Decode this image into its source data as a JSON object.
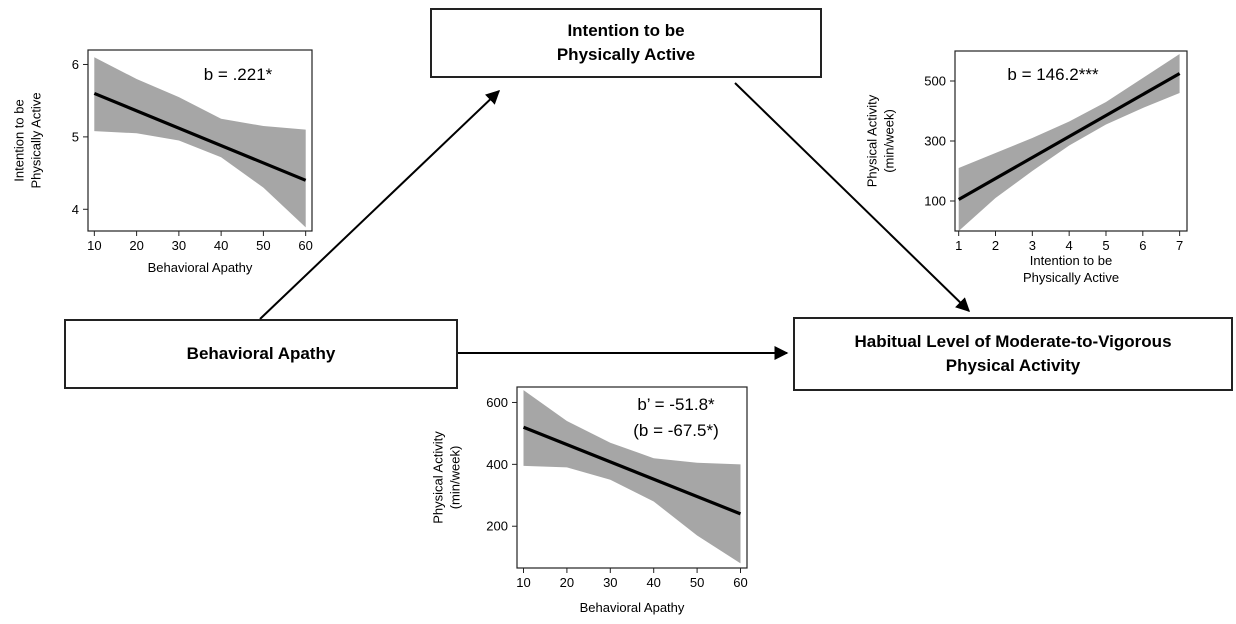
{
  "boxes": {
    "intention": {
      "line1": "Intention to be",
      "line2": "Physically Active"
    },
    "apathy": {
      "label": "Behavioral Apathy"
    },
    "activity": {
      "line1": "Habitual Level of Moderate-to-Vigorous",
      "line2": "Physical Activity"
    }
  },
  "colors": {
    "band": "#a6a6a6",
    "line": "#000000",
    "frame": "#222222"
  },
  "chart_data": [
    {
      "type": "line",
      "id": "a-path",
      "coefficient": "b = .221*",
      "xlabel": "Behavioral Apathy",
      "ylabel": [
        "Intention to be",
        "Physically Active"
      ],
      "xlim": [
        8.5,
        61.5
      ],
      "ylim": [
        3.7,
        6.2
      ],
      "xticks": [
        10,
        20,
        30,
        40,
        50,
        60
      ],
      "yticks": [
        4,
        5,
        6
      ],
      "x": [
        10,
        60
      ],
      "y": [
        5.6,
        4.4
      ],
      "band_x": [
        10,
        20,
        30,
        40,
        50,
        60
      ],
      "band_upper": [
        6.1,
        5.8,
        5.55,
        5.25,
        5.15,
        5.1
      ],
      "band_lower": [
        5.08,
        5.05,
        4.95,
        4.72,
        4.3,
        3.75
      ]
    },
    {
      "type": "line",
      "id": "b-path",
      "coefficient": "b = 146.2***",
      "xlabel": [
        "Intention to be",
        "Physically Active"
      ],
      "ylabel": [
        "Physical Activity",
        "(min/week)"
      ],
      "xlim": [
        0.9,
        7.2
      ],
      "ylim": [
        0,
        600
      ],
      "xticks": [
        1,
        2,
        3,
        4,
        5,
        6,
        7
      ],
      "yticks": [
        100,
        300,
        500
      ],
      "x": [
        1,
        7
      ],
      "y": [
        105,
        525
      ],
      "band_x": [
        1,
        2,
        3,
        4,
        5,
        6,
        7
      ],
      "band_upper": [
        210,
        260,
        310,
        365,
        430,
        510,
        590
      ],
      "band_lower": [
        0,
        110,
        200,
        285,
        355,
        410,
        460
      ]
    },
    {
      "type": "line",
      "id": "c-path",
      "coefficient": [
        "b’ = -51.8*",
        "(b  = -67.5*)"
      ],
      "xlabel": "Behavioral Apathy",
      "ylabel": [
        "Physical Activity",
        "(min/week)"
      ],
      "xlim": [
        8.5,
        61.5
      ],
      "ylim": [
        65,
        650
      ],
      "xticks": [
        10,
        20,
        30,
        40,
        50,
        60
      ],
      "yticks": [
        200,
        400,
        600
      ],
      "x": [
        10,
        60
      ],
      "y": [
        520,
        240
      ],
      "band_x": [
        10,
        20,
        30,
        40,
        50,
        60
      ],
      "band_upper": [
        640,
        540,
        470,
        420,
        405,
        400
      ],
      "band_lower": [
        395,
        390,
        350,
        280,
        170,
        80
      ]
    }
  ]
}
